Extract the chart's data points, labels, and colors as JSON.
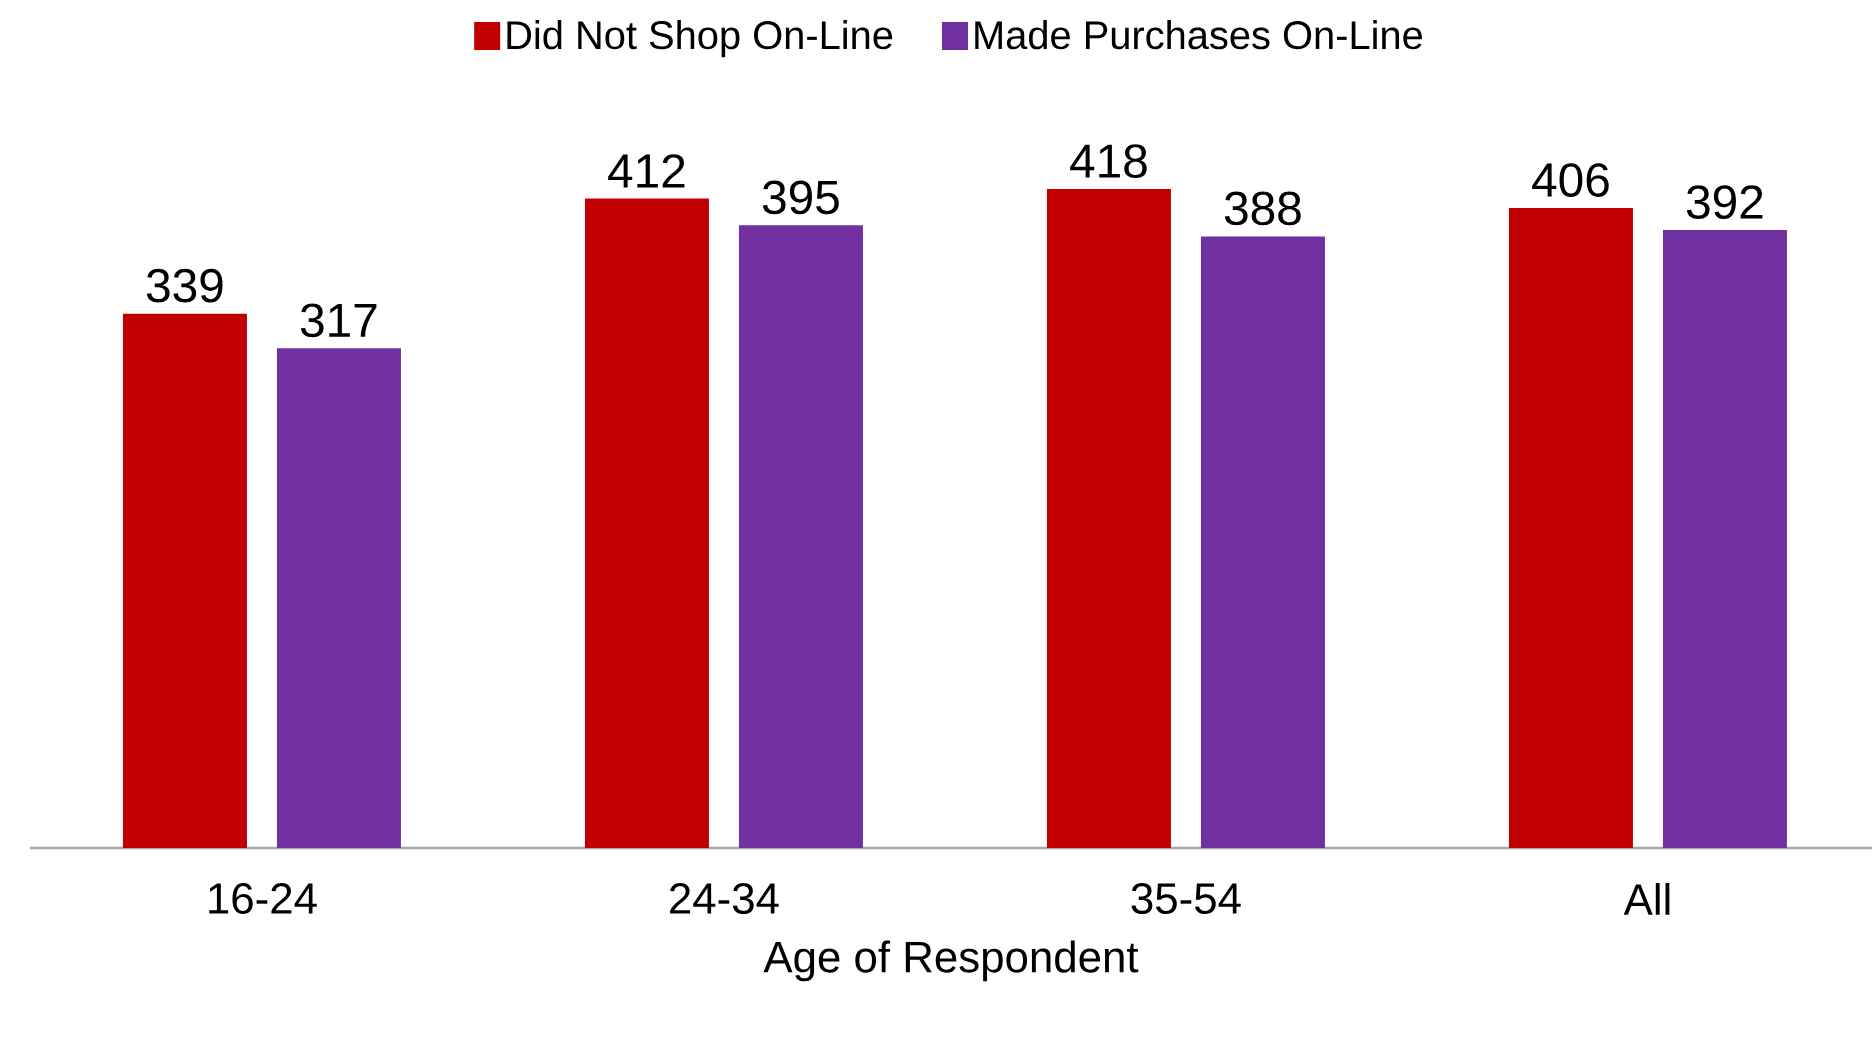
{
  "chart_data": {
    "type": "bar",
    "xlabel": "Age of Respondent",
    "categories": [
      "16-24",
      "24-34",
      "35-54",
      "All"
    ],
    "series": [
      {
        "name": "Did Not Shop On-Line",
        "color": "#c00000",
        "values": [
          339,
          412,
          418,
          406
        ]
      },
      {
        "name": "Made Purchases On-Line",
        "color": "#7030a0",
        "values": [
          317,
          395,
          388,
          392
        ]
      }
    ],
    "data_labels": true,
    "legend": "top",
    "grid": false
  }
}
